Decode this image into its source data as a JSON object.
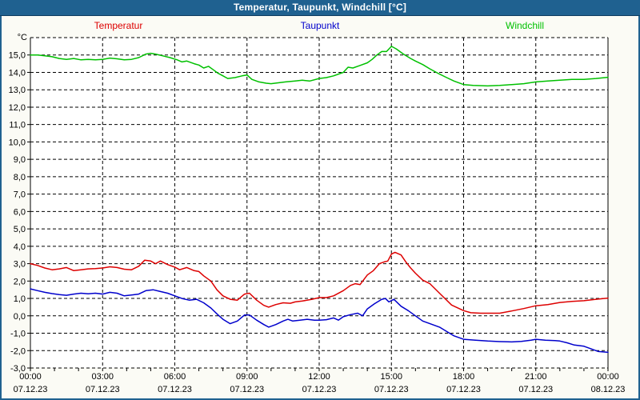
{
  "window": {
    "title": "Temperatur, Taupunkt, Windchill [°C]"
  },
  "legend": [
    {
      "label": "Temperatur",
      "color": "#DD0000"
    },
    {
      "label": "Taupunkt",
      "color": "#0000CC"
    },
    {
      "label": "Windchill",
      "color": "#00C000"
    }
  ],
  "chart_data": {
    "type": "line",
    "title": "Temperatur, Taupunkt, Windchill [°C]",
    "xlabel": "",
    "ylabel": "°C",
    "ylim": [
      -3,
      16
    ],
    "xlim_hours": [
      0,
      24
    ],
    "grid": true,
    "legend_position": "top",
    "yticks": [
      {
        "value": 15,
        "label": "15,0"
      },
      {
        "value": 14,
        "label": "14,0"
      },
      {
        "value": 13,
        "label": "13,0"
      },
      {
        "value": 12,
        "label": "12,0"
      },
      {
        "value": 11,
        "label": "11,0"
      },
      {
        "value": 10,
        "label": "10,0"
      },
      {
        "value": 9,
        "label": "9,0"
      },
      {
        "value": 8,
        "label": "8,0"
      },
      {
        "value": 7,
        "label": "7,0"
      },
      {
        "value": 6,
        "label": "6,0"
      },
      {
        "value": 5,
        "label": "5,0"
      },
      {
        "value": 4,
        "label": "4,0"
      },
      {
        "value": 3,
        "label": "3,0"
      },
      {
        "value": 2,
        "label": "2,0"
      },
      {
        "value": 1,
        "label": "1,0"
      },
      {
        "value": 0,
        "label": "0,0"
      },
      {
        "value": -1,
        "label": "-1,0"
      },
      {
        "value": -2,
        "label": "-2,0"
      },
      {
        "value": -3,
        "label": "-3,0"
      }
    ],
    "xticks": [
      {
        "hour": 0,
        "time": "00:00",
        "date": "07.12.23"
      },
      {
        "hour": 3,
        "time": "03:00",
        "date": "07.12.23"
      },
      {
        "hour": 6,
        "time": "06:00",
        "date": "07.12.23"
      },
      {
        "hour": 9,
        "time": "09:00",
        "date": "07.12.23"
      },
      {
        "hour": 12,
        "time": "12:00",
        "date": "07.12.23"
      },
      {
        "hour": 15,
        "time": "15:00",
        "date": "07.12.23"
      },
      {
        "hour": 18,
        "time": "18:00",
        "date": "07.12.23"
      },
      {
        "hour": 21,
        "time": "21:00",
        "date": "07.12.23"
      },
      {
        "hour": 24,
        "time": "00:00",
        "date": "08.12.23"
      }
    ],
    "minor_xtick_every_hours": 1,
    "series": [
      {
        "name": "Temperatur",
        "color": "#DD0000",
        "points": [
          [
            0,
            3.0
          ],
          [
            0.3,
            2.9
          ],
          [
            0.6,
            2.75
          ],
          [
            0.9,
            2.65
          ],
          [
            1.2,
            2.7
          ],
          [
            1.5,
            2.78
          ],
          [
            1.8,
            2.6
          ],
          [
            2.1,
            2.65
          ],
          [
            2.4,
            2.7
          ],
          [
            2.7,
            2.72
          ],
          [
            3.0,
            2.75
          ],
          [
            3.3,
            2.82
          ],
          [
            3.6,
            2.78
          ],
          [
            3.9,
            2.68
          ],
          [
            4.2,
            2.65
          ],
          [
            4.5,
            2.85
          ],
          [
            4.75,
            3.2
          ],
          [
            5.0,
            3.15
          ],
          [
            5.2,
            3.0
          ],
          [
            5.4,
            3.15
          ],
          [
            5.7,
            2.95
          ],
          [
            6.0,
            2.8
          ],
          [
            6.2,
            2.65
          ],
          [
            6.5,
            2.78
          ],
          [
            6.8,
            2.6
          ],
          [
            7.0,
            2.55
          ],
          [
            7.2,
            2.3
          ],
          [
            7.5,
            2.0
          ],
          [
            7.75,
            1.5
          ],
          [
            8.0,
            1.15
          ],
          [
            8.3,
            0.95
          ],
          [
            8.6,
            0.9
          ],
          [
            8.9,
            1.25
          ],
          [
            9.1,
            1.3
          ],
          [
            9.4,
            0.9
          ],
          [
            9.7,
            0.6
          ],
          [
            9.9,
            0.5
          ],
          [
            10.2,
            0.65
          ],
          [
            10.5,
            0.75
          ],
          [
            10.8,
            0.72
          ],
          [
            11.0,
            0.8
          ],
          [
            11.3,
            0.85
          ],
          [
            11.7,
            0.95
          ],
          [
            12.0,
            1.05
          ],
          [
            12.3,
            1.05
          ],
          [
            12.6,
            1.15
          ],
          [
            13.0,
            1.45
          ],
          [
            13.3,
            1.75
          ],
          [
            13.5,
            1.85
          ],
          [
            13.7,
            1.8
          ],
          [
            14.0,
            2.35
          ],
          [
            14.25,
            2.6
          ],
          [
            14.5,
            3.0
          ],
          [
            14.7,
            3.1
          ],
          [
            14.85,
            3.15
          ],
          [
            15.0,
            3.55
          ],
          [
            15.15,
            3.65
          ],
          [
            15.4,
            3.5
          ],
          [
            15.6,
            3.1
          ],
          [
            15.8,
            2.75
          ],
          [
            16.0,
            2.45
          ],
          [
            16.3,
            2.05
          ],
          [
            16.6,
            1.85
          ],
          [
            17.0,
            1.3
          ],
          [
            17.5,
            0.62
          ],
          [
            18.0,
            0.3
          ],
          [
            18.3,
            0.18
          ],
          [
            18.7,
            0.15
          ],
          [
            19.0,
            0.15
          ],
          [
            19.5,
            0.15
          ],
          [
            20.0,
            0.28
          ],
          [
            20.5,
            0.42
          ],
          [
            21.0,
            0.58
          ],
          [
            21.5,
            0.65
          ],
          [
            22.0,
            0.77
          ],
          [
            22.5,
            0.83
          ],
          [
            23.0,
            0.87
          ],
          [
            23.5,
            0.95
          ],
          [
            24.0,
            1.02
          ]
        ]
      },
      {
        "name": "Taupunkt",
        "color": "#0000CC",
        "points": [
          [
            0,
            1.55
          ],
          [
            0.3,
            1.45
          ],
          [
            0.6,
            1.35
          ],
          [
            0.9,
            1.28
          ],
          [
            1.2,
            1.22
          ],
          [
            1.5,
            1.18
          ],
          [
            1.8,
            1.25
          ],
          [
            2.1,
            1.3
          ],
          [
            2.4,
            1.27
          ],
          [
            2.7,
            1.3
          ],
          [
            3.0,
            1.25
          ],
          [
            3.3,
            1.35
          ],
          [
            3.6,
            1.3
          ],
          [
            3.9,
            1.15
          ],
          [
            4.2,
            1.2
          ],
          [
            4.5,
            1.25
          ],
          [
            4.8,
            1.45
          ],
          [
            5.1,
            1.5
          ],
          [
            5.4,
            1.4
          ],
          [
            5.7,
            1.3
          ],
          [
            6.0,
            1.15
          ],
          [
            6.3,
            1.0
          ],
          [
            6.6,
            0.9
          ],
          [
            6.9,
            0.95
          ],
          [
            7.2,
            0.75
          ],
          [
            7.5,
            0.45
          ],
          [
            7.8,
            0.05
          ],
          [
            8.0,
            -0.2
          ],
          [
            8.3,
            -0.45
          ],
          [
            8.6,
            -0.3
          ],
          [
            8.9,
            0.05
          ],
          [
            9.1,
            0.05
          ],
          [
            9.4,
            -0.25
          ],
          [
            9.7,
            -0.5
          ],
          [
            9.9,
            -0.65
          ],
          [
            10.2,
            -0.5
          ],
          [
            10.5,
            -0.3
          ],
          [
            10.7,
            -0.2
          ],
          [
            10.9,
            -0.3
          ],
          [
            11.2,
            -0.25
          ],
          [
            11.5,
            -0.2
          ],
          [
            11.8,
            -0.25
          ],
          [
            12.0,
            -0.25
          ],
          [
            12.3,
            -0.22
          ],
          [
            12.6,
            -0.12
          ],
          [
            12.8,
            -0.25
          ],
          [
            13.0,
            -0.05
          ],
          [
            13.3,
            0.07
          ],
          [
            13.6,
            0.15
          ],
          [
            13.8,
            0.0
          ],
          [
            14.0,
            0.4
          ],
          [
            14.3,
            0.7
          ],
          [
            14.6,
            0.95
          ],
          [
            14.75,
            1.0
          ],
          [
            14.9,
            0.8
          ],
          [
            15.1,
            0.95
          ],
          [
            15.4,
            0.55
          ],
          [
            15.7,
            0.3
          ],
          [
            16.0,
            0.0
          ],
          [
            16.3,
            -0.3
          ],
          [
            16.6,
            -0.45
          ],
          [
            17.0,
            -0.65
          ],
          [
            17.3,
            -0.9
          ],
          [
            17.6,
            -1.15
          ],
          [
            18.0,
            -1.35
          ],
          [
            18.5,
            -1.4
          ],
          [
            19.0,
            -1.45
          ],
          [
            19.5,
            -1.48
          ],
          [
            20.0,
            -1.5
          ],
          [
            20.4,
            -1.47
          ],
          [
            20.8,
            -1.4
          ],
          [
            21.0,
            -1.35
          ],
          [
            21.4,
            -1.4
          ],
          [
            21.8,
            -1.42
          ],
          [
            22.0,
            -1.45
          ],
          [
            22.3,
            -1.55
          ],
          [
            22.6,
            -1.68
          ],
          [
            23.0,
            -1.75
          ],
          [
            23.3,
            -1.9
          ],
          [
            23.6,
            -2.05
          ],
          [
            24.0,
            -2.1
          ]
        ]
      },
      {
        "name": "Windchill",
        "color": "#00C000",
        "points": [
          [
            0,
            15.0
          ],
          [
            0.3,
            15.0
          ],
          [
            0.6,
            14.95
          ],
          [
            0.9,
            14.9
          ],
          [
            1.2,
            14.8
          ],
          [
            1.5,
            14.75
          ],
          [
            1.8,
            14.8
          ],
          [
            2.1,
            14.72
          ],
          [
            2.4,
            14.75
          ],
          [
            2.7,
            14.72
          ],
          [
            3.0,
            14.75
          ],
          [
            3.3,
            14.82
          ],
          [
            3.6,
            14.78
          ],
          [
            3.9,
            14.72
          ],
          [
            4.2,
            14.75
          ],
          [
            4.5,
            14.85
          ],
          [
            4.8,
            15.05
          ],
          [
            5.0,
            15.1
          ],
          [
            5.2,
            15.05
          ],
          [
            5.5,
            14.95
          ],
          [
            5.8,
            14.85
          ],
          [
            6.1,
            14.72
          ],
          [
            6.3,
            14.6
          ],
          [
            6.5,
            14.65
          ],
          [
            6.8,
            14.5
          ],
          [
            7.0,
            14.42
          ],
          [
            7.2,
            14.25
          ],
          [
            7.4,
            14.35
          ],
          [
            7.6,
            14.15
          ],
          [
            7.8,
            13.95
          ],
          [
            8.0,
            13.8
          ],
          [
            8.2,
            13.65
          ],
          [
            8.5,
            13.7
          ],
          [
            8.8,
            13.8
          ],
          [
            9.0,
            13.85
          ],
          [
            9.2,
            13.6
          ],
          [
            9.5,
            13.45
          ],
          [
            9.8,
            13.38
          ],
          [
            10.0,
            13.35
          ],
          [
            10.3,
            13.4
          ],
          [
            10.6,
            13.45
          ],
          [
            11.0,
            13.5
          ],
          [
            11.3,
            13.55
          ],
          [
            11.6,
            13.5
          ],
          [
            12.0,
            13.65
          ],
          [
            12.3,
            13.7
          ],
          [
            12.6,
            13.8
          ],
          [
            13.0,
            14.0
          ],
          [
            13.2,
            14.3
          ],
          [
            13.4,
            14.25
          ],
          [
            13.7,
            14.4
          ],
          [
            14.0,
            14.55
          ],
          [
            14.2,
            14.75
          ],
          [
            14.4,
            15.0
          ],
          [
            14.6,
            15.2
          ],
          [
            14.8,
            15.2
          ],
          [
            15.0,
            15.5
          ],
          [
            15.2,
            15.35
          ],
          [
            15.5,
            15.05
          ],
          [
            15.8,
            14.8
          ],
          [
            16.0,
            14.65
          ],
          [
            16.3,
            14.45
          ],
          [
            16.6,
            14.2
          ],
          [
            17.0,
            13.9
          ],
          [
            17.3,
            13.7
          ],
          [
            17.6,
            13.5
          ],
          [
            18.0,
            13.3
          ],
          [
            18.4,
            13.25
          ],
          [
            19.0,
            13.22
          ],
          [
            19.5,
            13.25
          ],
          [
            20.0,
            13.3
          ],
          [
            20.5,
            13.35
          ],
          [
            21.0,
            13.45
          ],
          [
            21.5,
            13.5
          ],
          [
            22.0,
            13.55
          ],
          [
            22.5,
            13.6
          ],
          [
            23.0,
            13.6
          ],
          [
            23.5,
            13.65
          ],
          [
            24.0,
            13.72
          ]
        ]
      }
    ]
  }
}
